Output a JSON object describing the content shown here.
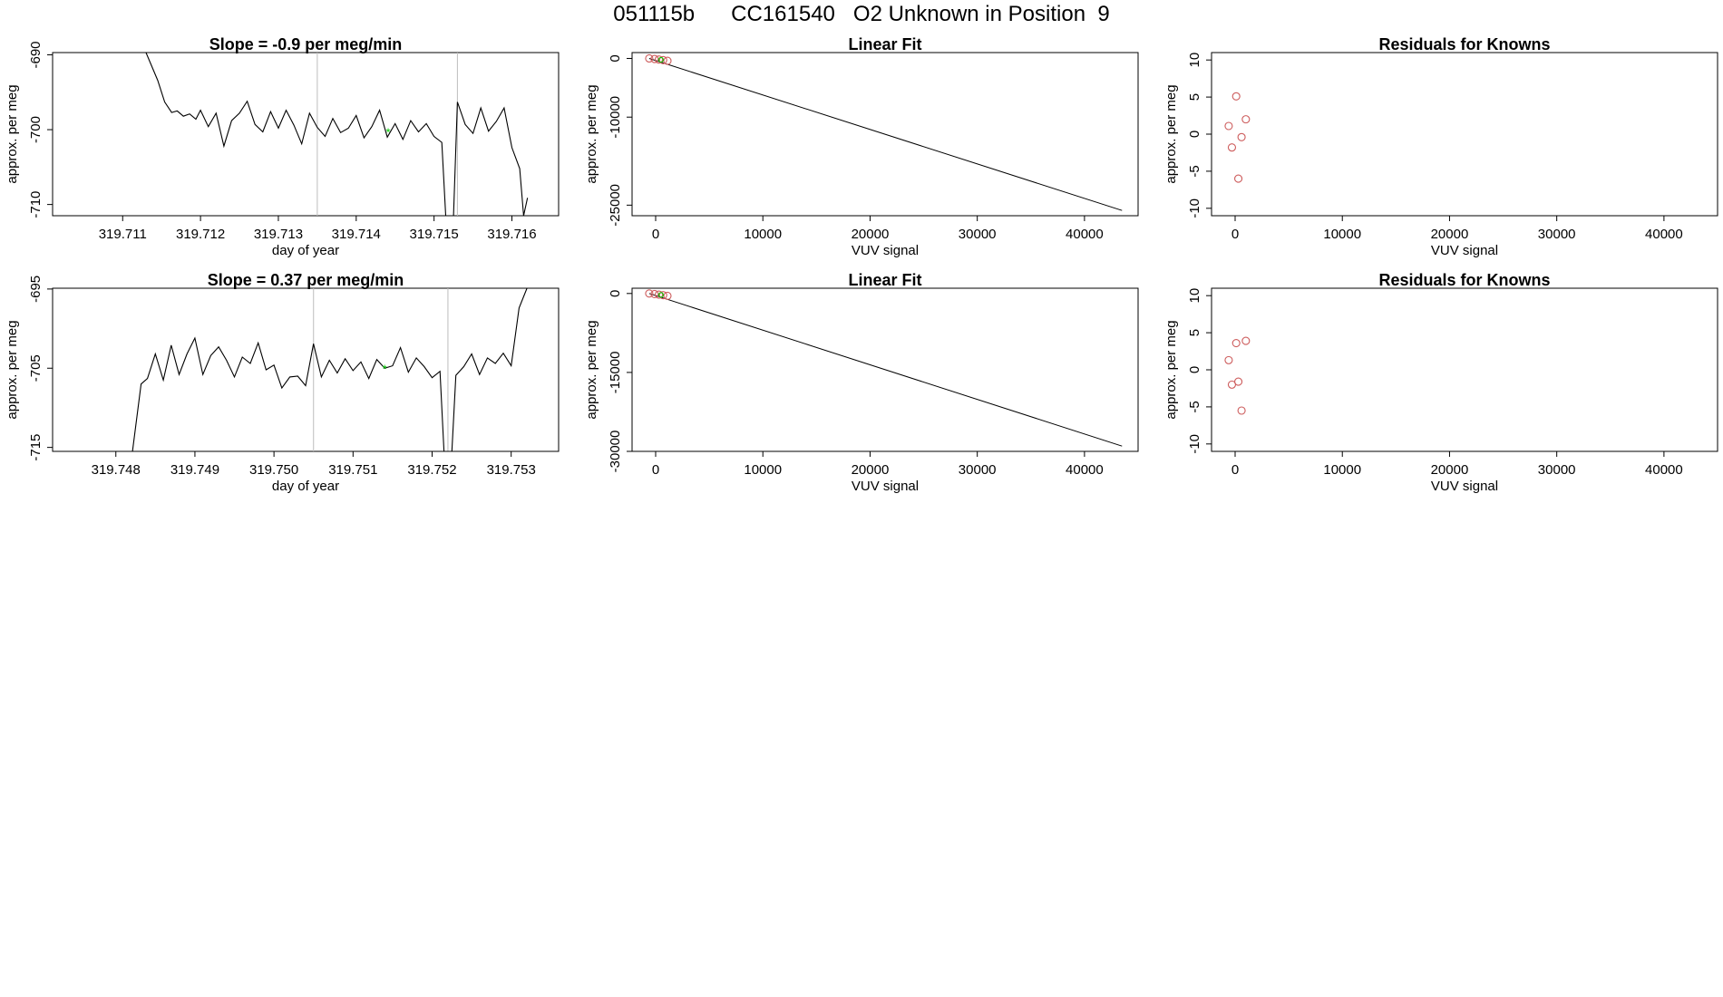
{
  "page_title": "051115b      CC161540   O2 Unknown in Position  9",
  "chart_data": [
    {
      "type": "line",
      "title": "Slope =  -0.9  per meg/min",
      "xlabel": "day of year",
      "ylabel": "approx. per meg",
      "xlim": [
        319.7101,
        319.7166
      ],
      "ylim": [
        -711.5,
        -689.7
      ],
      "xticks": [
        319.711,
        319.712,
        319.713,
        319.714,
        319.715,
        319.716
      ],
      "xtick_labels": [
        "319.711",
        "319.712",
        "319.713",
        "319.714",
        "319.715",
        "319.716"
      ],
      "yticks": [
        -690,
        -700,
        -710
      ],
      "ytick_labels": [
        "-690",
        "-700",
        "-710"
      ],
      "vlines": [
        319.7135,
        319.7153
      ],
      "line_color": "#000000",
      "vline_color": "#bebebe",
      "marker": {
        "x": 319.71441,
        "y": -700.3,
        "color": "#00cd00"
      },
      "x": [
        319.7113,
        319.71145,
        319.71154,
        319.71163,
        319.7117,
        319.71178,
        319.71186,
        319.71194,
        319.712,
        319.7121,
        319.7122,
        319.7123,
        319.7124,
        319.7125,
        319.7126,
        319.7127,
        319.7128,
        319.7129,
        319.713,
        319.7131,
        319.7132,
        319.7133,
        319.7134,
        319.7135,
        319.7136,
        319.7137,
        319.7138,
        319.7139,
        319.714,
        319.7141,
        319.7142,
        319.7143,
        319.7144,
        319.7145,
        319.7146,
        319.7147,
        319.7148,
        319.7149,
        319.715,
        319.7151,
        319.71515,
        319.71525,
        319.7153,
        319.7154,
        319.7155,
        319.7156,
        319.7157,
        319.7158,
        319.7159,
        319.716,
        319.7161,
        319.71615,
        319.7162
      ],
      "y": [
        -689.7,
        -693.4,
        -696.3,
        -697.7,
        -697.5,
        -698.2,
        -697.9,
        -698.6,
        -697.4,
        -699.6,
        -697.8,
        -702.2,
        -698.8,
        -697.8,
        -696.2,
        -699.3,
        -700.3,
        -697.6,
        -699.8,
        -697.4,
        -699.4,
        -701.9,
        -697.8,
        -699.7,
        -700.9,
        -698.5,
        -700.4,
        -699.8,
        -698.1,
        -701.1,
        -699.6,
        -697.4,
        -701.0,
        -699.2,
        -701.3,
        -698.8,
        -700.3,
        -699.2,
        -700.9,
        -701.7,
        -711.5,
        -711.5,
        -696.3,
        -699.3,
        -700.5,
        -697.1,
        -700.2,
        -698.9,
        -697.1,
        -702.4,
        -705.2,
        -711.5,
        -709.1
      ]
    },
    {
      "type": "scatter",
      "title": "Linear Fit",
      "xlabel": "VUV signal",
      "ylabel": "approx. per meg",
      "xlim": [
        -2200,
        45000
      ],
      "ylim": [
        -26800,
        1000
      ],
      "xticks": [
        0,
        10000,
        20000,
        30000,
        40000
      ],
      "xtick_labels": [
        "0",
        "10000",
        "20000",
        "30000",
        "40000"
      ],
      "yticks": [
        0,
        -10000,
        -25000
      ],
      "ytick_labels": [
        "0",
        "-10000",
        "-25000"
      ],
      "fit_line": {
        "x": [
          -600,
          43500
        ],
        "y": [
          0,
          -25900
        ],
        "color": "#000000"
      },
      "points": {
        "x": [
          -600,
          -100,
          300,
          700,
          1100
        ],
        "y": [
          0,
          -90,
          -180,
          -280,
          -400
        ],
        "color": "#cd5c5c"
      },
      "center_point": {
        "x": 500,
        "y": -230,
        "color": "#00cd00"
      }
    },
    {
      "type": "scatter",
      "title": "Residuals for Knowns",
      "xlabel": "VUV signal",
      "ylabel": "approx. per meg",
      "xlim": [
        -2200,
        45000
      ],
      "ylim": [
        -11,
        11
      ],
      "xticks": [
        0,
        10000,
        20000,
        30000,
        40000
      ],
      "xtick_labels": [
        "0",
        "10000",
        "20000",
        "30000",
        "40000"
      ],
      "yticks": [
        10,
        5,
        0,
        -5,
        -10
      ],
      "ytick_labels": [
        "10",
        "5",
        "0",
        "-5",
        "-10"
      ],
      "points": {
        "x": [
          -600,
          100,
          1000,
          600,
          -300,
          300
        ],
        "y": [
          1.1,
          5.1,
          2.0,
          -0.4,
          -1.8,
          -6.0
        ],
        "color": "#cd5c5c"
      }
    },
    {
      "type": "line",
      "title": "Slope =  0.37  per meg/min",
      "xlabel": "day of year",
      "ylabel": "approx. per meg",
      "xlim": [
        319.7472,
        319.7536
      ],
      "ylim": [
        -715.5,
        -694.9
      ],
      "xticks": [
        319.748,
        319.749,
        319.75,
        319.751,
        319.752,
        319.753
      ],
      "xtick_labels": [
        "319.748",
        "319.749",
        "319.750",
        "319.751",
        "319.752",
        "319.753"
      ],
      "yticks": [
        -695,
        -705,
        -715
      ],
      "ytick_labels": [
        "-695",
        "-705",
        "-715"
      ],
      "vlines": [
        319.7505,
        319.7522
      ],
      "line_color": "#000000",
      "vline_color": "#bebebe",
      "marker": {
        "x": 319.7514,
        "y": -705.0,
        "color": "#00cd00"
      },
      "x": [
        319.74821,
        319.74832,
        319.7484,
        319.7485,
        319.7486,
        319.7487,
        319.7488,
        319.7489,
        319.749,
        319.7491,
        319.7492,
        319.7493,
        319.7494,
        319.7495,
        319.7496,
        319.7497,
        319.7498,
        319.7499,
        319.75,
        319.7501,
        319.7502,
        319.7503,
        319.7504,
        319.7505,
        319.7506,
        319.7507,
        319.7508,
        319.7509,
        319.751,
        319.7511,
        319.7512,
        319.7513,
        319.7514,
        319.7515,
        319.7516,
        319.7517,
        319.7518,
        319.7519,
        319.752,
        319.7521,
        319.75215,
        319.75225,
        319.7523,
        319.7524,
        319.7525,
        319.7526,
        319.7527,
        319.7528,
        319.7529,
        319.753,
        319.7531,
        319.7532
      ],
      "y": [
        -715.5,
        -707.0,
        -706.3,
        -703.2,
        -706.5,
        -702.1,
        -705.8,
        -703.2,
        -701.2,
        -705.8,
        -703.4,
        -702.3,
        -704.0,
        -706.1,
        -703.6,
        -704.4,
        -701.8,
        -705.2,
        -704.6,
        -707.5,
        -706.1,
        -706.0,
        -707.2,
        -701.9,
        -706.1,
        -704.0,
        -705.6,
        -703.8,
        -705.3,
        -704.2,
        -706.3,
        -703.9,
        -705.0,
        -704.7,
        -702.4,
        -705.5,
        -703.7,
        -704.8,
        -706.2,
        -705.4,
        -715.5,
        -715.5,
        -705.9,
        -704.8,
        -703.2,
        -705.8,
        -703.7,
        -704.4,
        -703.1,
        -704.7,
        -697.4,
        -694.9
      ]
    },
    {
      "type": "scatter",
      "title": "Linear Fit",
      "xlabel": "VUV signal",
      "ylabel": "approx. per meg",
      "xlim": [
        -2200,
        45000
      ],
      "ylim": [
        -30000,
        1000
      ],
      "xticks": [
        0,
        10000,
        20000,
        30000,
        40000
      ],
      "xtick_labels": [
        "0",
        "10000",
        "20000",
        "30000",
        "40000"
      ],
      "yticks": [
        0,
        -15000,
        -30000
      ],
      "ytick_labels": [
        "0",
        "-15000",
        "-30000"
      ],
      "fit_line": {
        "x": [
          -600,
          43500
        ],
        "y": [
          0,
          -29000
        ],
        "color": "#000000"
      },
      "points": {
        "x": [
          -600,
          -100,
          300,
          700,
          1100
        ],
        "y": [
          0,
          -110,
          -210,
          -320,
          -450
        ],
        "color": "#cd5c5c"
      },
      "center_point": {
        "x": 500,
        "y": -260,
        "color": "#00cd00"
      }
    },
    {
      "type": "scatter",
      "title": "Residuals for Knowns",
      "xlabel": "VUV signal",
      "ylabel": "approx. per meg",
      "xlim": [
        -2200,
        45000
      ],
      "ylim": [
        -11,
        11
      ],
      "xticks": [
        0,
        10000,
        20000,
        30000,
        40000
      ],
      "xtick_labels": [
        "0",
        "10000",
        "20000",
        "30000",
        "40000"
      ],
      "yticks": [
        10,
        5,
        0,
        -5,
        -10
      ],
      "ytick_labels": [
        "10",
        "5",
        "0",
        "-5",
        "-10"
      ],
      "points": {
        "x": [
          -600,
          100,
          1000,
          300,
          -300,
          600
        ],
        "y": [
          1.3,
          3.6,
          3.9,
          -1.6,
          -2.0,
          -5.5
        ],
        "color": "#cd5c5c"
      }
    }
  ]
}
